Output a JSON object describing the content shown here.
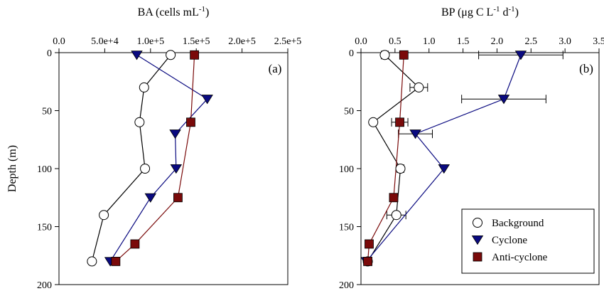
{
  "colors": {
    "background_marker": "#ffffff",
    "cyclone": "#0a0a80",
    "anticyclone": "#7a0a0a",
    "axis": "#000000"
  },
  "legend": {
    "items": [
      {
        "label": "Background",
        "marker": "circle",
        "color": "#ffffff"
      },
      {
        "label": "Cyclone",
        "marker": "triangle-down",
        "color": "#0a0a80"
      },
      {
        "label": "Anti-cyclone",
        "marker": "square",
        "color": "#7a0a0a"
      }
    ],
    "placement": "bottom-right of panel (b)"
  },
  "chart_data": [
    {
      "type": "line",
      "tag": "(a)",
      "title": "BA (cells mL-1)",
      "title_parts": {
        "base": "BA (cells mL",
        "sup": "-1",
        "close": ")"
      },
      "ylabel": "Depth (m)",
      "xlim": [
        0,
        250000
      ],
      "ylim": [
        0,
        200
      ],
      "y_inverted": true,
      "x_axis_position": "top",
      "x_tick_labels": [
        "0.0",
        "5.0e+4",
        "1.0e+5",
        "1.5e+5",
        "2.0e+5",
        "2.5e+5"
      ],
      "x_tick_values": [
        0,
        50000,
        100000,
        150000,
        200000,
        250000
      ],
      "y_tick_labels": [
        "0",
        "50",
        "100",
        "150",
        "200"
      ],
      "y_tick_values": [
        0,
        50,
        100,
        150,
        200
      ],
      "grid": false,
      "series": [
        {
          "name": "Background",
          "marker": "circle",
          "points": [
            [
              122000,
              2
            ],
            [
              93000,
              30
            ],
            [
              88000,
              60
            ],
            [
              94000,
              100
            ],
            [
              49000,
              140
            ],
            [
              36000,
              180
            ]
          ]
        },
        {
          "name": "Cyclone",
          "marker": "triangle-down",
          "points": [
            [
              85000,
              2
            ],
            [
              162000,
              40
            ],
            [
              127000,
              70
            ],
            [
              128000,
              100
            ],
            [
              100000,
              125
            ],
            [
              56000,
              180
            ]
          ]
        },
        {
          "name": "Anti-cyclone",
          "marker": "square",
          "points": [
            [
              148000,
              2
            ],
            [
              144000,
              60
            ],
            [
              130000,
              125
            ],
            [
              83000,
              165
            ],
            [
              62000,
              180
            ]
          ]
        }
      ]
    },
    {
      "type": "line",
      "tag": "(b)",
      "title": "BP (μg C L-1 d-1)",
      "title_parts": {
        "base": "BP (μg C L",
        "sup1": "-1",
        "mid": " d",
        "sup2": "-1",
        "close": ")"
      },
      "ylabel": "",
      "xlim": [
        0,
        3.5
      ],
      "ylim": [
        0,
        200
      ],
      "y_inverted": true,
      "x_axis_position": "top",
      "x_tick_labels": [
        "0.0",
        "0.5",
        "1.0",
        "1.5",
        "2.0",
        "2.5",
        "3.0",
        "3.5"
      ],
      "x_tick_values": [
        0,
        0.5,
        1.0,
        1.5,
        2.0,
        2.5,
        3.0,
        3.5
      ],
      "y_tick_labels": [
        "0",
        "50",
        "100",
        "150",
        "200"
      ],
      "y_tick_values": [
        0,
        50,
        100,
        150,
        200
      ],
      "grid": false,
      "series": [
        {
          "name": "Background",
          "marker": "circle",
          "points": [
            [
              0.35,
              2,
              0.05
            ],
            [
              0.85,
              30,
              0.13
            ],
            [
              0.18,
              60,
              0
            ],
            [
              0.58,
              100,
              0.05
            ],
            [
              0.52,
              140,
              0.14
            ],
            [
              0.1,
              180,
              0
            ]
          ]
        },
        {
          "name": "Cyclone",
          "marker": "triangle-down",
          "points": [
            [
              2.35,
              2,
              0.62
            ],
            [
              2.1,
              40,
              0.62
            ],
            [
              0.8,
              70,
              0.25
            ],
            [
              1.22,
              100,
              0
            ],
            [
              0.08,
              180,
              0
            ]
          ]
        },
        {
          "name": "Anti-cyclone",
          "marker": "square",
          "points": [
            [
              0.63,
              2,
              0
            ],
            [
              0.57,
              60,
              0.12
            ],
            [
              0.48,
              125,
              0
            ],
            [
              0.12,
              165,
              0
            ],
            [
              0.1,
              180,
              0
            ]
          ]
        }
      ]
    }
  ]
}
